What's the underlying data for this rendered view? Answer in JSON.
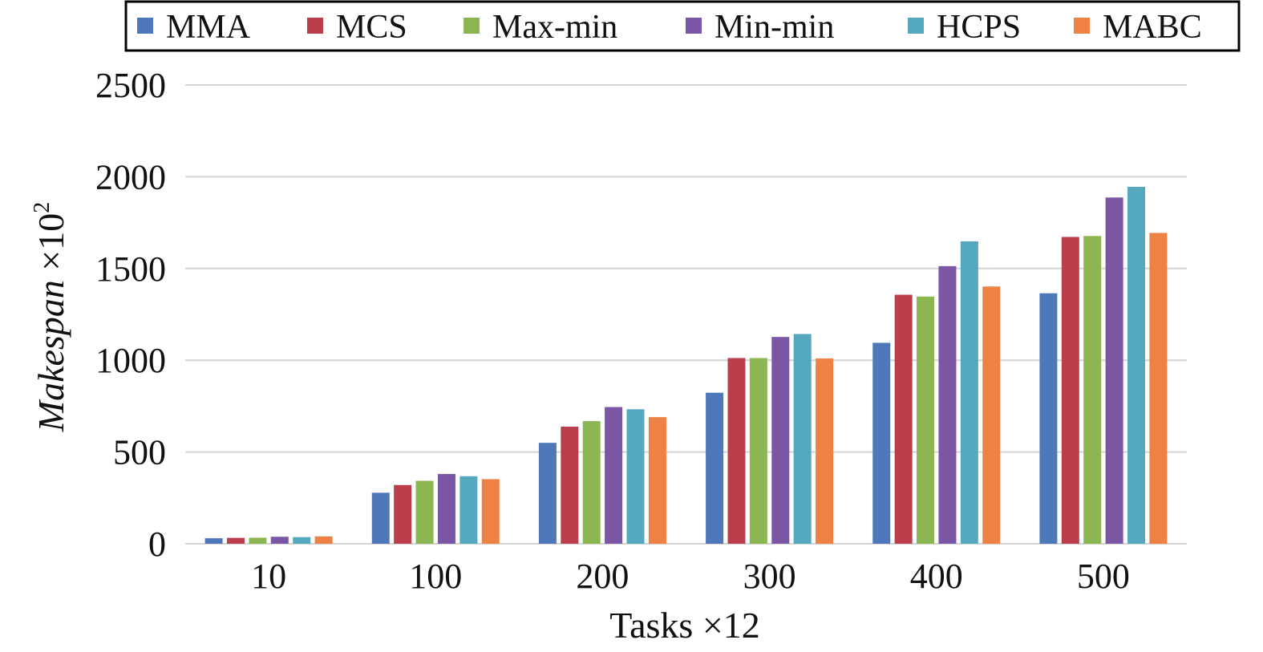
{
  "chart_data": {
    "type": "bar",
    "categories": [
      "10",
      "100",
      "200",
      "300",
      "400",
      "500"
    ],
    "series": [
      {
        "name": "MMA",
        "color": "#4F78BA",
        "values": [
          30,
          278,
          550,
          823,
          1095,
          1365
        ]
      },
      {
        "name": "MCS",
        "color": "#BA3E4C",
        "values": [
          32,
          320,
          638,
          1012,
          1357,
          1672
        ]
      },
      {
        "name": "Max-min",
        "color": "#8BB651",
        "values": [
          33,
          343,
          668,
          1012,
          1347,
          1677
        ]
      },
      {
        "name": "Min-min",
        "color": "#7A56A5",
        "values": [
          38,
          380,
          745,
          1127,
          1513,
          1887
        ]
      },
      {
        "name": "HCPS",
        "color": "#55A9BF",
        "values": [
          36,
          368,
          733,
          1143,
          1648,
          1945
        ]
      },
      {
        "name": "MABC",
        "color": "#EE8144",
        "values": [
          40,
          352,
          690,
          1010,
          1402,
          1694
        ]
      }
    ],
    "xlabel": "Tasks ×12",
    "ylabel": {
      "italic": "Makespan",
      "rest": " ×10",
      "superscript": "2"
    },
    "ylim": [
      0,
      2500
    ],
    "yticks": [
      0,
      500,
      1000,
      1500,
      2000,
      2500
    ],
    "grid": true,
    "legend_position": "top",
    "gridline_color": "#d4d4d4"
  }
}
